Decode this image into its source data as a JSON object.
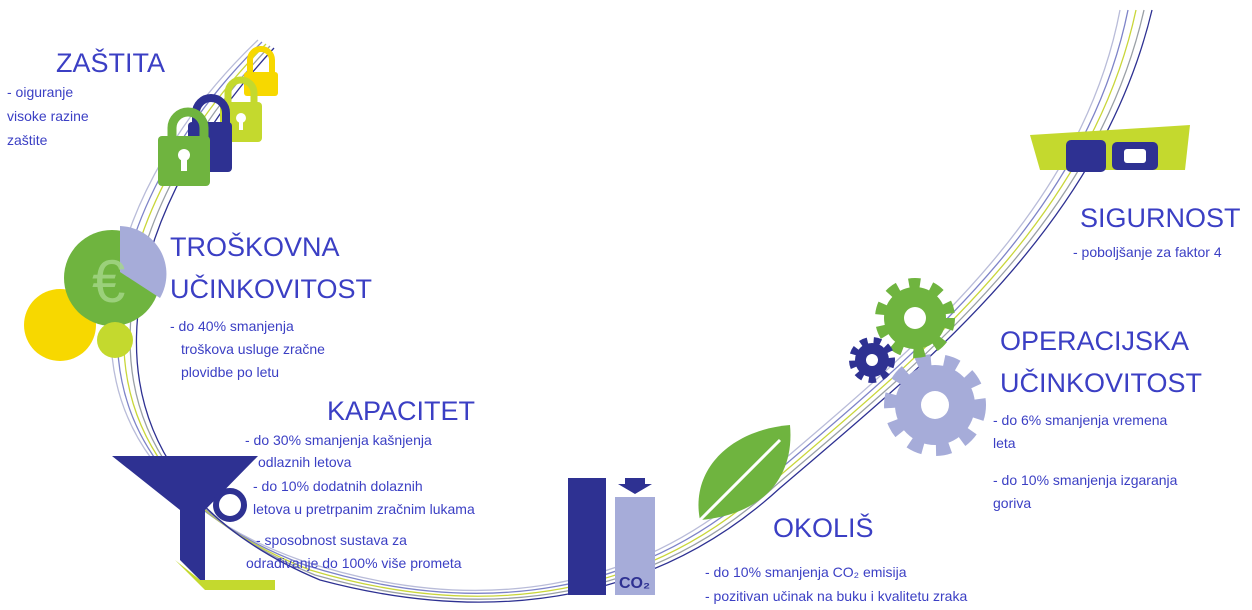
{
  "zastita": {
    "title": "ZAŠTITA",
    "lines": [
      "- oiguranje",
      "visoke razine",
      "zaštite"
    ]
  },
  "troskovna": {
    "title": [
      "TROŠKOVNA",
      "UČINKOVITOST"
    ],
    "lines": [
      "- do 40% smanjenja",
      "troškova usluge zračne",
      "plovidbe po letu"
    ]
  },
  "kapacitet": {
    "title": "KAPACITET",
    "lines": [
      "- do 30% smanjenja kašnjenja",
      "odlaznih letova",
      "- do 10% dodatnih dolaznih",
      "letova u pretrpanim zračnim  lukama",
      "- sposobnost sustava za",
      "odrađivanje do 100% više prometa"
    ]
  },
  "sigurnost": {
    "title": "SIGURNOST",
    "lines": [
      "- poboljšanje za faktor 4"
    ]
  },
  "operacijska": {
    "title": [
      "OPERACIJSKA",
      "UČINKOVITOST"
    ],
    "lines": [
      "- do 6% smanjenja vremena",
      "leta",
      "- do 10% smanjenja izgaranja",
      "goriva"
    ]
  },
  "okolis": {
    "title": "OKOLIŠ",
    "lines": [
      "- do 10% smanjenja CO₂ emisija",
      "- pozitivan učinak na buku i kvalitetu zraka"
    ],
    "icon_label": "CO₂"
  }
}
